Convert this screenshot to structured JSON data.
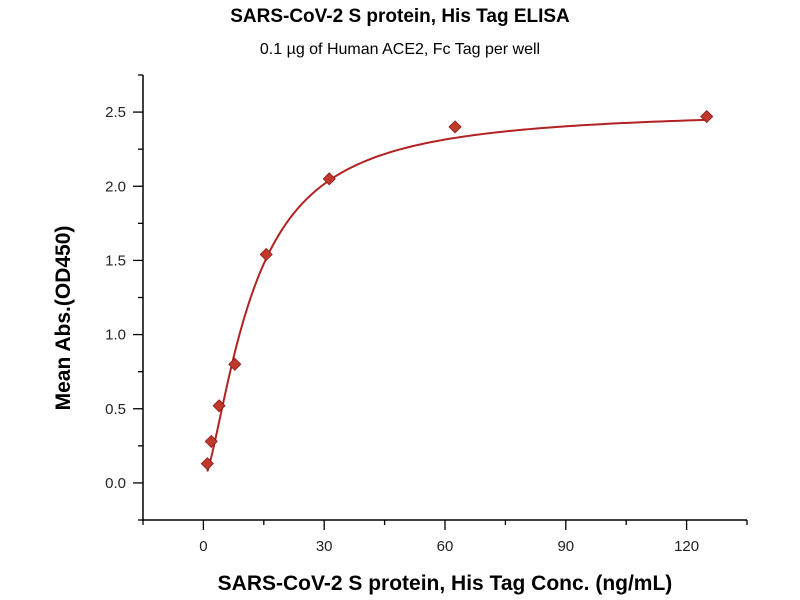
{
  "chart_data": {
    "type": "scatter",
    "title": "SARS-CoV-2 S protein, His Tag ELISA",
    "subtitle": "0.1 µg of Human ACE2, Fc Tag per well",
    "xlabel": "SARS-CoV-2 S protein, His Tag Conc. (ng/mL)",
    "ylabel": "Mean Abs.(OD450)",
    "xlim": [
      -15,
      135
    ],
    "ylim": [
      -0.25,
      2.75
    ],
    "xticks": [
      0,
      30,
      60,
      90,
      120
    ],
    "xtick_labels": [
      "0",
      "30",
      "60",
      "90",
      "120"
    ],
    "yticks": [
      0.0,
      0.5,
      1.0,
      1.5,
      2.0,
      2.5
    ],
    "ytick_labels": [
      "0.0",
      "0.5",
      "1.0",
      "1.5",
      "2.0",
      "2.5"
    ],
    "grid": false,
    "series": [
      {
        "name": "SARS-CoV-2 S protein, His Tag",
        "x": [
          0.98,
          1.95,
          3.9,
          7.8,
          15.6,
          31.25,
          62.5,
          125
        ],
        "y": [
          0.13,
          0.28,
          0.52,
          0.8,
          1.54,
          2.05,
          2.4,
          2.47
        ],
        "marker": "diamond",
        "color": "#c0392b"
      }
    ],
    "fit": {
      "model": "4PL",
      "bottom": 0.02,
      "top": 2.52,
      "ec50": 12,
      "hill": 1.5,
      "color": "#b22222"
    }
  }
}
